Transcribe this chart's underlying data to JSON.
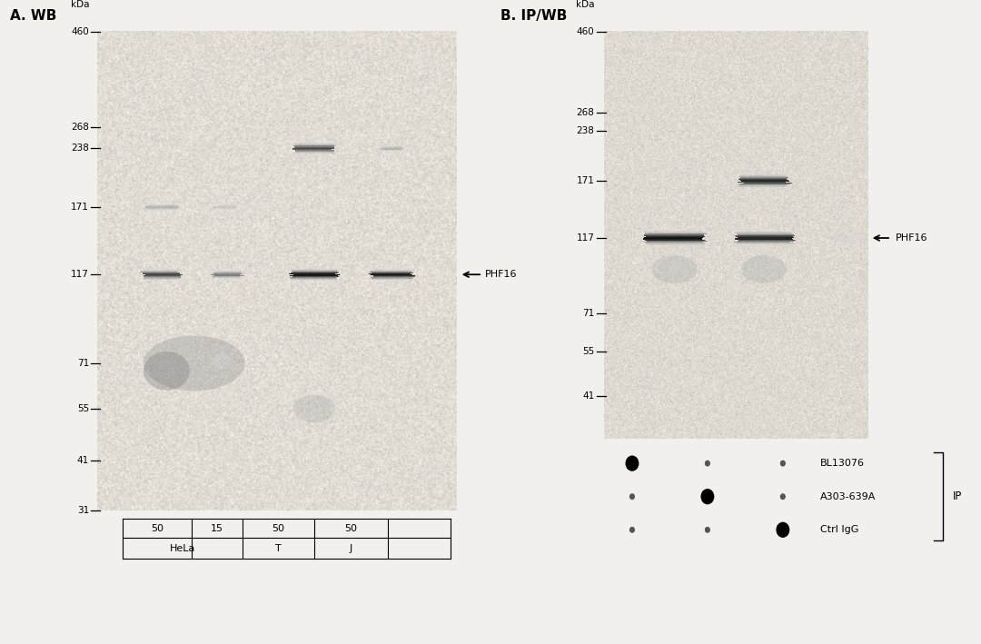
{
  "panel_A_title": "A. WB",
  "panel_B_title": "B. IP/WB",
  "mw_markers_A": [
    460,
    268,
    238,
    171,
    117,
    71,
    55,
    41,
    31
  ],
  "mw_markers_B": [
    460,
    268,
    238,
    171,
    117,
    71,
    55,
    41
  ],
  "phf16_label": "←PHF16",
  "panel_A_table_top": [
    "50",
    "15",
    "50",
    "50"
  ],
  "panel_A_table_bot_cells": [
    [
      "HeLa",
      2
    ],
    [
      "T",
      1
    ],
    [
      "J",
      1
    ]
  ],
  "panel_B_dots": [
    [
      true,
      false,
      false
    ],
    [
      false,
      true,
      false
    ],
    [
      false,
      false,
      true
    ]
  ],
  "panel_B_labels": [
    "BL13076",
    "A303-639A",
    "Ctrl IgG"
  ],
  "panel_B_IP_label": "IP",
  "fig_bg": "#f2f0ed",
  "blot_bg_A": [
    0.88,
    0.86,
    0.83
  ],
  "blot_bg_B": [
    0.87,
    0.85,
    0.82
  ],
  "noise_scale": 0.04,
  "log_min_mw": 31,
  "log_max_mw": 460
}
